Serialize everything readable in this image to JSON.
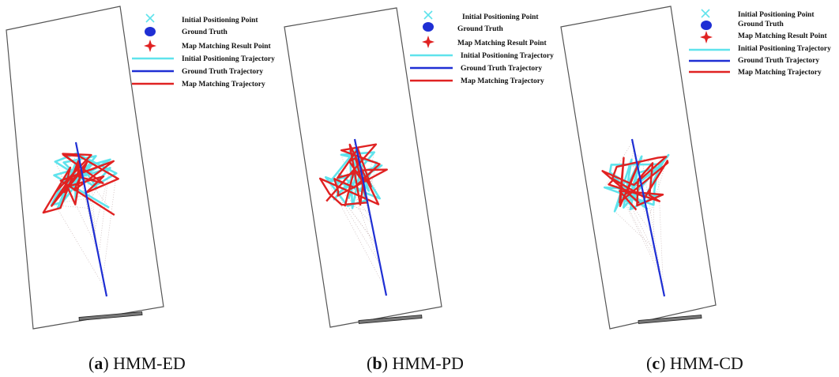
{
  "legend": {
    "initial_point": "Initial Positioning Point",
    "ground_truth": "Ground Truth",
    "map_point": "Map Matching Result Point",
    "initial_traj": "Initial Positioning Trajectory",
    "ground_traj": "Ground Truth Trajectory",
    "map_traj": "Map Matching Trajectory"
  },
  "colors": {
    "initial": "#5fe3ec",
    "ground": "#1f2fd4",
    "map": "#e02222",
    "frame": "#555555",
    "door": "#333333"
  },
  "panels": [
    {
      "letter": "a",
      "method": "HMM-ED"
    },
    {
      "letter": "b",
      "method": "HMM-PD"
    },
    {
      "letter": "c",
      "method": "HMM-CD"
    }
  ]
}
